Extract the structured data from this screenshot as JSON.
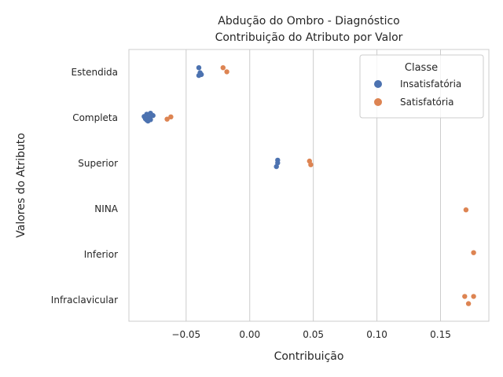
{
  "chart_data": {
    "type": "scatter",
    "title": "Abdução do Ombro - Diagnóstico",
    "subtitle": "Contribuição do Atributo por Valor",
    "xlabel": "Contribuição",
    "ylabel": "Valores do Atributo",
    "xlim": [
      -0.095,
      0.188
    ],
    "x_ticks": [
      {
        "value": -0.05,
        "label": "−0.05"
      },
      {
        "value": 0.0,
        "label": "0.00"
      },
      {
        "value": 0.05,
        "label": "0.05"
      },
      {
        "value": 0.1,
        "label": "0.10"
      },
      {
        "value": 0.15,
        "label": "0.15"
      }
    ],
    "categories": [
      "Estendida",
      "Completa",
      "Superior",
      "NINA",
      "Inferior",
      "Infraclavicular"
    ],
    "grid": "vertical",
    "legend": {
      "title": "Classe",
      "placement": "top-right"
    },
    "series": [
      {
        "name": "Insatisfatória",
        "color": "#4c72b0",
        "points": [
          {
            "category": "Estendida",
            "x": -0.04,
            "jitter": -0.1
          },
          {
            "category": "Estendida",
            "x": -0.038,
            "jitter": 0.05
          },
          {
            "category": "Estendida",
            "x": -0.039,
            "jitter": 0.01
          },
          {
            "category": "Estendida",
            "x": -0.04,
            "jitter": 0.07
          },
          {
            "category": "Completa",
            "x": -0.081,
            "jitter": -0.08
          },
          {
            "category": "Completa",
            "x": -0.078,
            "jitter": -0.1
          },
          {
            "category": "Completa",
            "x": -0.083,
            "jitter": -0.03
          },
          {
            "category": "Completa",
            "x": -0.079,
            "jitter": 0.0
          },
          {
            "category": "Completa",
            "x": -0.076,
            "jitter": -0.05
          },
          {
            "category": "Completa",
            "x": -0.081,
            "jitter": 0.05
          },
          {
            "category": "Completa",
            "x": -0.082,
            "jitter": 0.02
          },
          {
            "category": "Completa",
            "x": -0.078,
            "jitter": 0.04
          },
          {
            "category": "Completa",
            "x": -0.08,
            "jitter": 0.07
          },
          {
            "category": "Superior",
            "x": 0.022,
            "jitter": -0.07
          },
          {
            "category": "Superior",
            "x": 0.022,
            "jitter": -0.01
          },
          {
            "category": "Superior",
            "x": 0.021,
            "jitter": 0.07
          }
        ]
      },
      {
        "name": "Satisfatória",
        "color": "#dd8452",
        "points": [
          {
            "category": "Estendida",
            "x": -0.021,
            "jitter": -0.1
          },
          {
            "category": "Estendida",
            "x": -0.018,
            "jitter": -0.01
          },
          {
            "category": "Completa",
            "x": -0.062,
            "jitter": -0.02
          },
          {
            "category": "Completa",
            "x": -0.065,
            "jitter": 0.03
          },
          {
            "category": "Superior",
            "x": 0.047,
            "jitter": -0.05
          },
          {
            "category": "Superior",
            "x": 0.048,
            "jitter": 0.03
          },
          {
            "category": "NINA",
            "x": 0.17,
            "jitter": 0.02
          },
          {
            "category": "Inferior",
            "x": 0.176,
            "jitter": -0.04
          },
          {
            "category": "Infraclavicular",
            "x": 0.169,
            "jitter": -0.08
          },
          {
            "category": "Infraclavicular",
            "x": 0.176,
            "jitter": -0.08
          },
          {
            "category": "Infraclavicular",
            "x": 0.172,
            "jitter": 0.08
          }
        ]
      }
    ]
  }
}
